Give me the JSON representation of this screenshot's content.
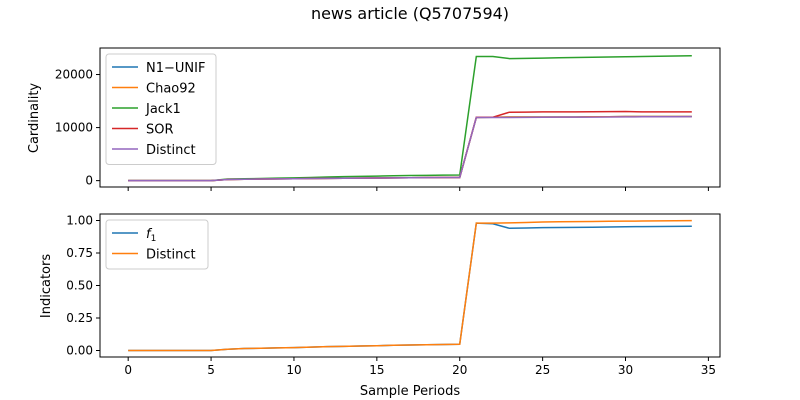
{
  "title": "news article (Q5707594)",
  "chart_data": [
    {
      "type": "line",
      "ylabel": "Cardinality",
      "xlabel": "",
      "xlim": [
        -1.7,
        35.7
      ],
      "ylim": [
        -1200,
        25000
      ],
      "yticks": [
        0,
        10000,
        20000
      ],
      "ytick_labels": [
        "0",
        "10000",
        "20000"
      ],
      "grid": false,
      "legend_position": "top-left",
      "x": [
        0,
        1,
        2,
        3,
        4,
        5,
        6,
        7,
        8,
        9,
        10,
        11,
        12,
        13,
        14,
        15,
        16,
        17,
        18,
        19,
        20,
        21,
        22,
        23,
        24,
        25,
        26,
        27,
        28,
        29,
        30,
        31,
        32,
        33,
        34
      ],
      "series": [
        {
          "name": "N1−UNIF",
          "color": "#1f77b4",
          "values": [
            0,
            0,
            0,
            0,
            0,
            0,
            220,
            260,
            300,
            330,
            360,
            390,
            420,
            450,
            470,
            490,
            520,
            540,
            560,
            580,
            600,
            11900,
            11950,
            12000,
            12000,
            12000,
            12000,
            12000,
            12050,
            12050,
            12100,
            12100,
            12100,
            12100,
            12100
          ]
        },
        {
          "name": "Chao92",
          "color": "#ff7f0e",
          "values": [
            0,
            0,
            0,
            0,
            0,
            0,
            220,
            260,
            300,
            330,
            360,
            390,
            420,
            450,
            470,
            490,
            520,
            540,
            560,
            580,
            600,
            11900,
            11950,
            12000,
            12000,
            12000,
            12000,
            12000,
            12050,
            12050,
            12100,
            12100,
            12100,
            12100,
            12100
          ]
        },
        {
          "name": "Jack1",
          "color": "#2ca02c",
          "values": [
            0,
            0,
            0,
            0,
            0,
            0,
            300,
            350,
            400,
            470,
            530,
            600,
            680,
            760,
            810,
            860,
            910,
            960,
            1000,
            1030,
            1060,
            23400,
            23400,
            23000,
            23050,
            23100,
            23150,
            23200,
            23250,
            23300,
            23350,
            23400,
            23450,
            23500,
            23550
          ]
        },
        {
          "name": "SOR",
          "color": "#d62728",
          "values": [
            0,
            0,
            0,
            0,
            0,
            0,
            220,
            260,
            300,
            330,
            360,
            390,
            420,
            450,
            470,
            490,
            520,
            540,
            560,
            580,
            600,
            11950,
            11950,
            12900,
            12920,
            12950,
            12960,
            12970,
            12980,
            13000,
            13020,
            12950,
            12950,
            12960,
            12970
          ]
        },
        {
          "name": "Distinct",
          "color": "#9467bd",
          "values": [
            0,
            0,
            0,
            0,
            0,
            0,
            220,
            260,
            300,
            330,
            360,
            390,
            420,
            450,
            470,
            490,
            520,
            540,
            560,
            580,
            600,
            11900,
            11900,
            11900,
            11920,
            11950,
            11960,
            11970,
            11980,
            12000,
            12020,
            12030,
            12040,
            12050,
            12060
          ]
        }
      ]
    },
    {
      "type": "line",
      "ylabel": "Indicators",
      "xlabel": "Sample Periods",
      "xlim": [
        -1.7,
        35.7
      ],
      "ylim": [
        -0.05,
        1.05
      ],
      "xticks": [
        0,
        5,
        10,
        15,
        20,
        25,
        30,
        35
      ],
      "xtick_labels": [
        "0",
        "5",
        "10",
        "15",
        "20",
        "25",
        "30",
        "35"
      ],
      "yticks": [
        0,
        0.25,
        0.5,
        0.75,
        1.0
      ],
      "ytick_labels": [
        "0.00",
        "0.25",
        "0.50",
        "0.75",
        "1.00"
      ],
      "grid": false,
      "legend_position": "top-left",
      "x": [
        0,
        1,
        2,
        3,
        4,
        5,
        6,
        7,
        8,
        9,
        10,
        11,
        12,
        13,
        14,
        15,
        16,
        17,
        18,
        19,
        20,
        21,
        22,
        23,
        24,
        25,
        26,
        27,
        28,
        29,
        30,
        31,
        32,
        33,
        34
      ],
      "series": [
        {
          "name": "f1",
          "color": "#1f77b4",
          "values": [
            0,
            0,
            0,
            0,
            0,
            0,
            0.01,
            0.015,
            0.017,
            0.02,
            0.022,
            0.026,
            0.03,
            0.032,
            0.035,
            0.037,
            0.04,
            0.042,
            0.044,
            0.046,
            0.048,
            0.98,
            0.975,
            0.94,
            0.942,
            0.945,
            0.946,
            0.947,
            0.948,
            0.95,
            0.952,
            0.953,
            0.954,
            0.955,
            0.956
          ]
        },
        {
          "name": "Distinct",
          "color": "#ff7f0e",
          "values": [
            0,
            0,
            0,
            0,
            0,
            0,
            0.01,
            0.015,
            0.017,
            0.02,
            0.022,
            0.026,
            0.03,
            0.032,
            0.035,
            0.037,
            0.04,
            0.042,
            0.044,
            0.046,
            0.048,
            0.98,
            0.98,
            0.982,
            0.985,
            0.988,
            0.99,
            0.991,
            0.992,
            0.994,
            0.995,
            0.996,
            0.997,
            0.998,
            0.999
          ]
        }
      ]
    }
  ]
}
